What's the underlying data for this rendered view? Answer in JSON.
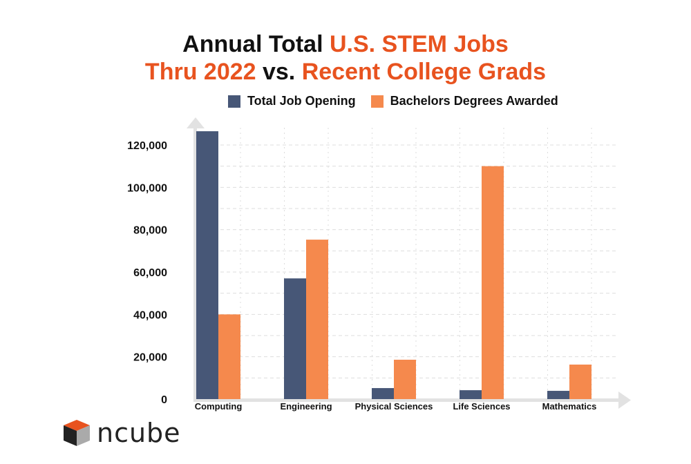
{
  "chart_data": {
    "type": "bar",
    "title_parts": [
      "Annual Total ",
      "U.S. STEM Jobs",
      "Thru 2022",
      " vs. ",
      "Recent College Grads"
    ],
    "categories": [
      "Computing",
      "Engineering",
      "Physical Sciences",
      "Life Sciences",
      "Mathematics"
    ],
    "series": [
      {
        "name": "Total Job Opening",
        "color": "#475777",
        "values": [
          126500,
          57000,
          5200,
          4200,
          3900
        ]
      },
      {
        "name": "Bachelors Degrees Awarded",
        "color": "#F5894D",
        "values": [
          40000,
          75300,
          18600,
          110000,
          16300
        ]
      }
    ],
    "ylim": [
      0,
      120000
    ],
    "yticks": [
      0,
      20000,
      40000,
      60000,
      80000,
      100000,
      120000
    ],
    "ytick_labels": [
      "0",
      "20,000",
      "40,000",
      "60,000",
      "80,000",
      "100,000",
      "120,000"
    ],
    "grid": true,
    "legend_position": "top"
  },
  "brand": {
    "name": "ncube",
    "accent": "#E8531F"
  }
}
